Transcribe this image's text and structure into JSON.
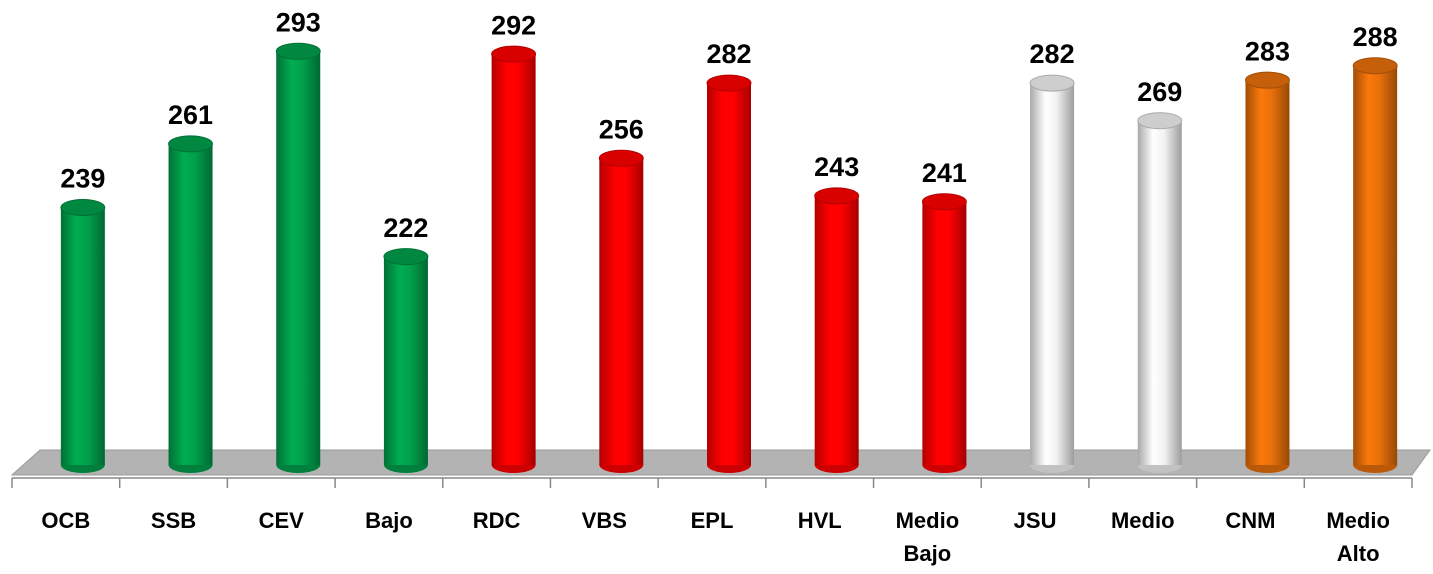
{
  "chart_data": {
    "type": "bar",
    "categories": [
      "OCB",
      "SSB",
      "CEV",
      "Bajo",
      "RDC",
      "VBS",
      "EPL",
      "HVL",
      "Medio Bajo",
      "JSU",
      "Medio",
      "CNM",
      "Medio Alto"
    ],
    "values": [
      239,
      261,
      293,
      222,
      292,
      256,
      282,
      243,
      241,
      282,
      269,
      283,
      288
    ],
    "colors": [
      "#00a04b",
      "#00a04b",
      "#00a04b",
      "#00a04b",
      "#ff0000",
      "#ff0000",
      "#ff0000",
      "#ff0000",
      "#ff0000",
      "#f2f2f2",
      "#f2f2f2",
      "#e8700a",
      "#e8700a"
    ],
    "ylim": [
      150,
      300
    ]
  }
}
